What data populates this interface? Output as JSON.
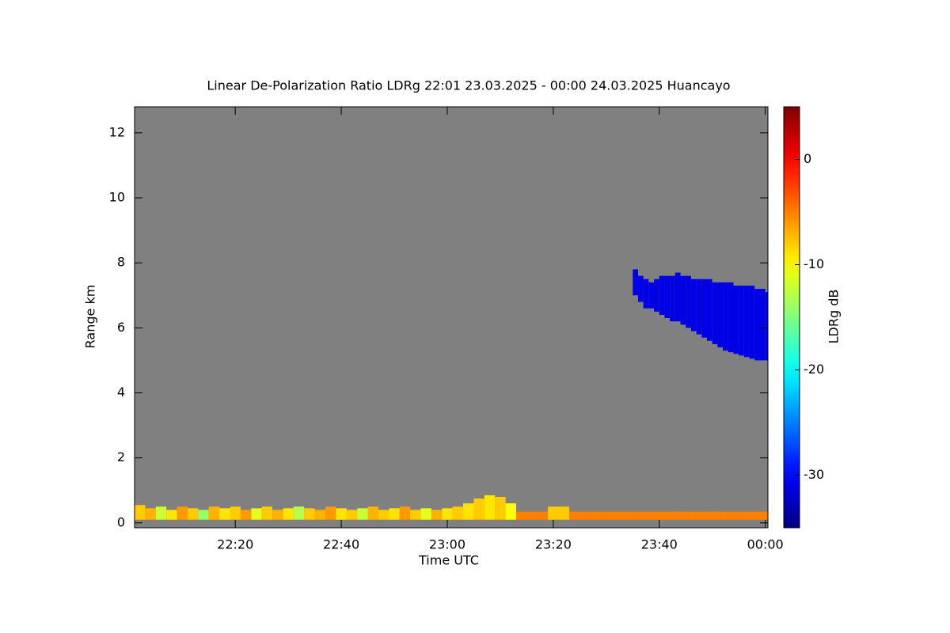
{
  "chart_data": {
    "type": "heatmap",
    "title": "Linear De-Polarization Ratio LDRg   22:01 23.03.2025 - 00:00 24.03.2025 Huancayo",
    "x_label": "Time UTC",
    "y_label": "Range km",
    "colorbar_label": "LDRg dB",
    "colormap": "jet",
    "background": "#808080",
    "xlim": [
      1,
      120.5
    ],
    "xticks": [
      {
        "value": 20,
        "label": "22:20"
      },
      {
        "value": 40,
        "label": "22:40"
      },
      {
        "value": 60,
        "label": "23:00"
      },
      {
        "value": 80,
        "label": "23:20"
      },
      {
        "value": 100,
        "label": "23:40"
      },
      {
        "value": 120,
        "label": "00:00"
      }
    ],
    "ylim": [
      -0.15,
      12.8
    ],
    "yticks": [
      0,
      2,
      4,
      6,
      8,
      10,
      12
    ],
    "clim": [
      -35,
      5
    ],
    "cticks": [
      0,
      -10,
      -20,
      -30
    ],
    "layers": [
      {
        "x": [
          1,
          3,
          5,
          7,
          9,
          11,
          13,
          15,
          17,
          19,
          21,
          23,
          25,
          27,
          29,
          31,
          33,
          35,
          37,
          39,
          41,
          43,
          45,
          47,
          49,
          51,
          53,
          55,
          57,
          59,
          61,
          63,
          65,
          67,
          69,
          71,
          73,
          75,
          77,
          79,
          81,
          83,
          85,
          87,
          89,
          91,
          93,
          95,
          97,
          99,
          101,
          103,
          105,
          107,
          109,
          111,
          113,
          115,
          117,
          119
        ],
        "bottom": [
          0.1,
          0.1,
          0.1,
          0.1,
          0.1,
          0.1,
          0.1,
          0.1,
          0.1,
          0.1,
          0.1,
          0.1,
          0.1,
          0.1,
          0.1,
          0.1,
          0.1,
          0.1,
          0.1,
          0.1,
          0.1,
          0.1,
          0.1,
          0.1,
          0.1,
          0.1,
          0.1,
          0.1,
          0.1,
          0.1,
          0.1,
          0.1,
          0.1,
          0.1,
          0.1,
          0.1,
          0.1,
          0.1,
          0.1,
          0.1,
          0.1,
          0.1,
          0.1,
          0.1,
          0.1,
          0.1,
          0.1,
          0.1,
          0.1,
          0.1,
          0.1,
          0.1,
          0.1,
          0.1,
          0.1,
          0.1,
          0.1,
          0.1,
          0.1,
          0.1
        ],
        "top": [
          0.55,
          0.45,
          0.5,
          0.4,
          0.5,
          0.45,
          0.4,
          0.5,
          0.45,
          0.5,
          0.4,
          0.45,
          0.5,
          0.4,
          0.45,
          0.5,
          0.45,
          0.4,
          0.5,
          0.45,
          0.4,
          0.45,
          0.5,
          0.4,
          0.45,
          0.5,
          0.4,
          0.45,
          0.4,
          0.45,
          0.5,
          0.6,
          0.75,
          0.85,
          0.8,
          0.6,
          0.35,
          0.35,
          0.35,
          0.5,
          0.5,
          0.35,
          0.35,
          0.35,
          0.35,
          0.35,
          0.35,
          0.35,
          0.35,
          0.35,
          0.35,
          0.35,
          0.35,
          0.35,
          0.35,
          0.35,
          0.35,
          0.35,
          0.35,
          0.35
        ],
        "values": [
          -8,
          -7,
          -12,
          -9,
          -6,
          -8,
          -14,
          -7,
          -9,
          -8,
          -6,
          -11,
          -8,
          -7,
          -9,
          -13,
          -8,
          -7,
          -6,
          -9,
          -8,
          -12,
          -7,
          -8,
          -9,
          -6,
          -8,
          -11,
          -7,
          -9,
          -8,
          -9,
          -8,
          -9,
          -8,
          -10,
          -5,
          -5,
          -5,
          -8,
          -8,
          -5,
          -5,
          -5,
          -5,
          -5,
          -5,
          -5,
          -5,
          -5,
          -5,
          -5,
          -5,
          -5,
          -5,
          -5,
          -5,
          -5,
          -5,
          -5
        ]
      },
      {
        "x": [
          95,
          96,
          97,
          98,
          99,
          100,
          101,
          102,
          103,
          104,
          105,
          106,
          107,
          108,
          109,
          110,
          111,
          112,
          113,
          114,
          115,
          116,
          117,
          118,
          119,
          120
        ],
        "bottom": [
          7.0,
          6.8,
          6.6,
          6.6,
          6.5,
          6.4,
          6.3,
          6.2,
          6.2,
          6.1,
          6.0,
          5.9,
          5.8,
          5.7,
          5.6,
          5.5,
          5.4,
          5.3,
          5.25,
          5.2,
          5.15,
          5.1,
          5.05,
          5.0,
          5.0,
          5.0
        ],
        "top": [
          7.8,
          7.6,
          7.5,
          7.4,
          7.5,
          7.6,
          7.6,
          7.6,
          7.7,
          7.6,
          7.6,
          7.5,
          7.5,
          7.5,
          7.5,
          7.4,
          7.4,
          7.4,
          7.4,
          7.3,
          7.3,
          7.3,
          7.3,
          7.2,
          7.2,
          7.1
        ],
        "values": [
          -31,
          -31,
          -31,
          -31,
          -31,
          -31,
          -31,
          -31,
          -31,
          -31,
          -31,
          -31,
          -31,
          -31,
          -31,
          -31,
          -31,
          -31,
          -31,
          -31,
          -31,
          -31,
          -31,
          -31,
          -31,
          -31
        ]
      }
    ]
  }
}
